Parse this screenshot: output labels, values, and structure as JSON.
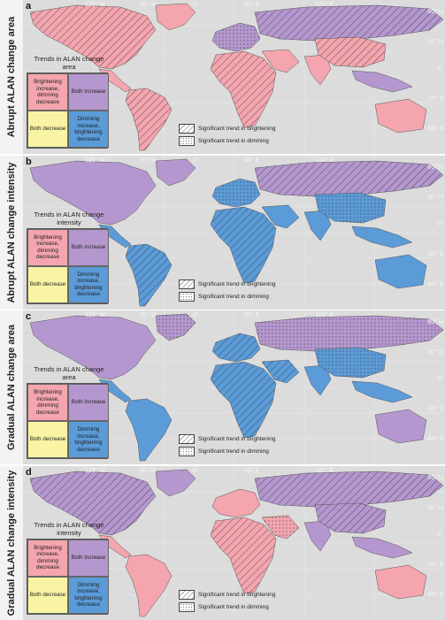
{
  "colors": {
    "brightening_dimming_decrease": "#f4a5ae",
    "both_increase": "#b597cf",
    "both_decrease": "#f9f4a4",
    "dimming_increase": "#5b9bd8",
    "ocean": "#dcdcdc"
  },
  "meridian_labels": [
    "120° W",
    "60° W",
    "0°",
    "60° E",
    "120° E"
  ],
  "parallel_labels": [
    "60° N",
    "30° N",
    "0°",
    "30° S",
    "60° S"
  ],
  "panels": [
    {
      "letter": "a",
      "side_title": "Abrupt ALAN change area",
      "legend_title": "Trends in ALAN change area",
      "cells": [
        "Brightening increase, dimming decrease",
        "Both increase",
        "Both decrease",
        "Dimming increase, brightening decrease"
      ],
      "key_brightening": "Significant trend in brightening",
      "key_dimming": "Significant trend in dimming",
      "scheme": "a"
    },
    {
      "letter": "b",
      "side_title": "Abrupt ALAN change intensity",
      "legend_title": "Trends in ALAN change intensity",
      "cells": [
        "Brightening increase, dimming decrease",
        "Both increase",
        "Both decrease",
        "Dimming increase, brightening decrease"
      ],
      "key_brightening": "Significant trend in brightening",
      "key_dimming": "Significant trend in dimming",
      "scheme": "b"
    },
    {
      "letter": "c",
      "side_title": "Gradual ALAN change area",
      "legend_title": "Trends in ALAN change area",
      "cells": [
        "Brightening increase, dimming decrease",
        "Both increase",
        "Both decrease",
        "Dimming increase, brightening decrease"
      ],
      "key_brightening": "Significant trend in brightening",
      "key_dimming": "Significant trend in dimming",
      "scheme": "c"
    },
    {
      "letter": "d",
      "side_title": "Gradual ALAN change intensity",
      "legend_title": "Trends in ALAN change intensity",
      "cells": [
        "Brightening increase, dimming decrease",
        "Both increase",
        "Both decrease",
        "Dimming increase, brightening decrease"
      ],
      "key_brightening": "Significant trend in brightening",
      "key_dimming": "Significant trend in dimming",
      "scheme": "d"
    }
  ],
  "region_colors": {
    "a": {
      "north_america": "pink",
      "central_america": "pink",
      "south_america": "pink",
      "greenland": "pink",
      "europe": "purple",
      "russia": "purple",
      "africa": "pink",
      "middle_east": "pink",
      "india": "pink",
      "china": "pink",
      "se_asia": "purple",
      "australia": "pink"
    },
    "b": {
      "north_america": "purple",
      "central_america": "blue",
      "south_america": "blue",
      "greenland": "purple",
      "europe": "blue",
      "russia": "purple",
      "africa": "blue",
      "middle_east": "blue",
      "india": "blue",
      "china": "blue",
      "se_asia": "blue",
      "australia": "blue"
    },
    "c": {
      "north_america": "purple",
      "central_america": "blue",
      "south_america": "blue",
      "greenland": "purple",
      "europe": "blue",
      "russia": "purple",
      "africa": "blue",
      "middle_east": "blue",
      "india": "blue",
      "china": "blue",
      "se_asia": "blue",
      "australia": "purple"
    },
    "d": {
      "north_america": "purple",
      "central_america": "pink",
      "south_america": "pink",
      "greenland": "purple",
      "europe": "pink",
      "russia": "purple",
      "africa": "pink",
      "middle_east": "pink",
      "india": "purple",
      "china": "purple",
      "se_asia": "purple",
      "australia": "pink"
    }
  }
}
